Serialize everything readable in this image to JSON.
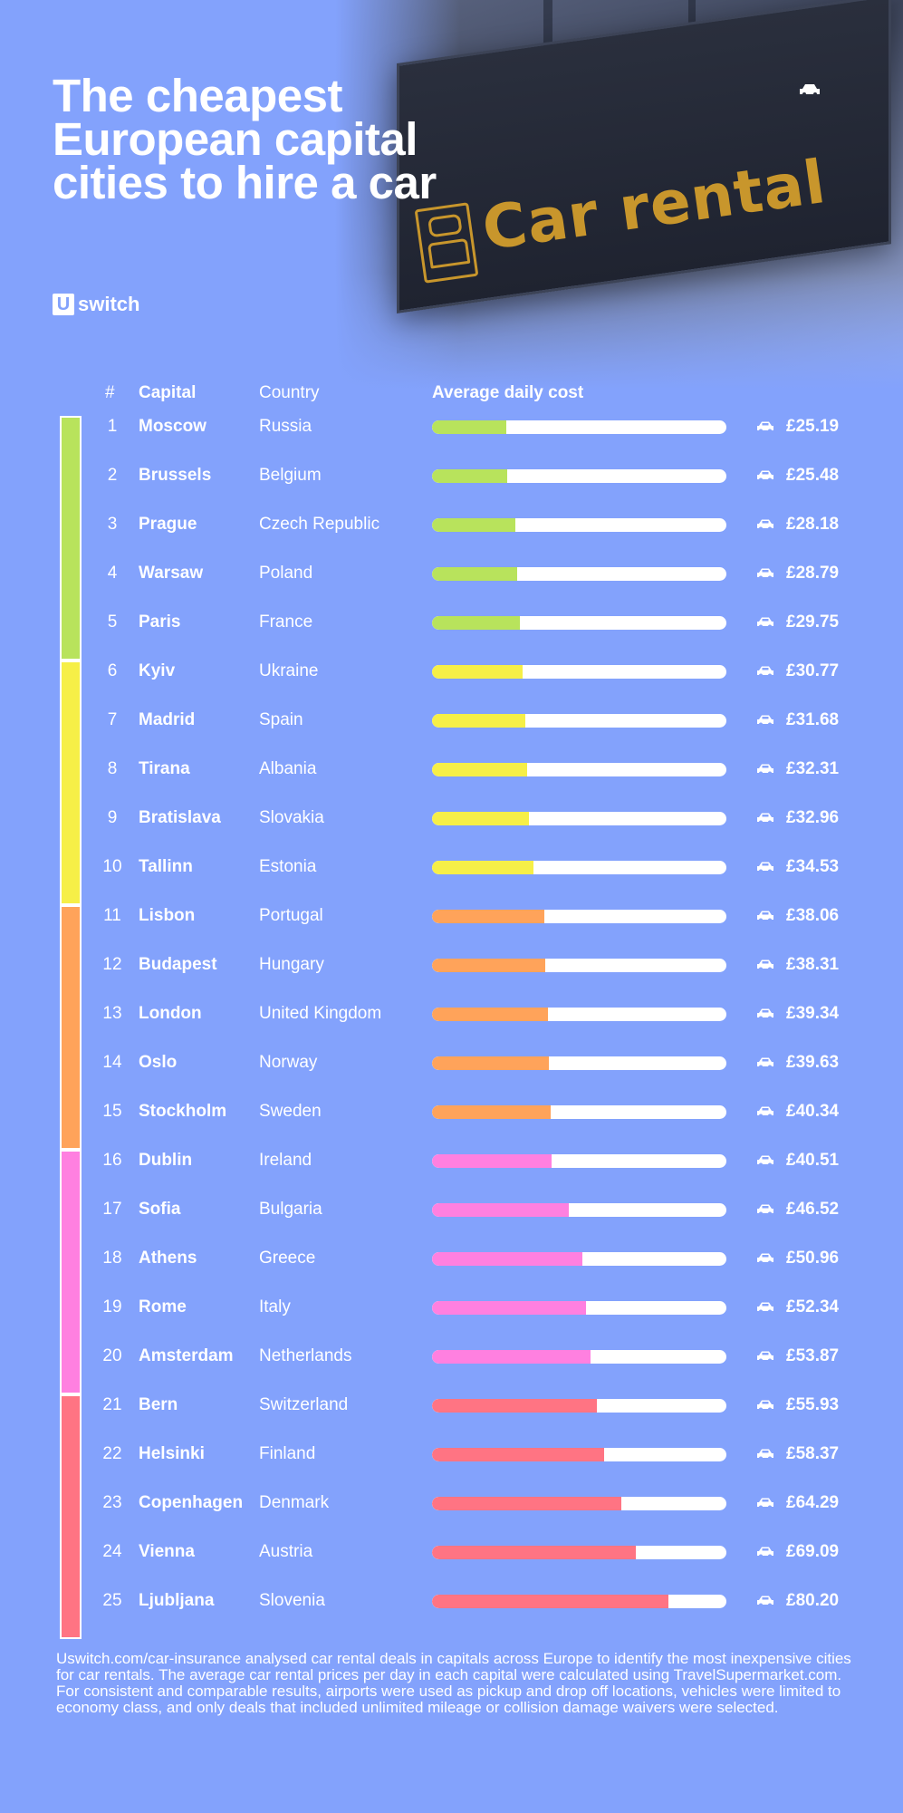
{
  "title": "The cheapest European capital cities to hire a car",
  "brand": {
    "mark": "U",
    "name": "switch"
  },
  "sign_text": "Car rental",
  "headers": {
    "rank": "#",
    "capital": "Capital",
    "country": "Country",
    "cost": "Average daily cost"
  },
  "chart_data": {
    "type": "bar",
    "title": "The cheapest European capital cities to hire a car",
    "xlabel": "",
    "ylabel": "Average daily cost",
    "xlim": [
      0,
      100
    ],
    "currency": "£",
    "categories": [
      "Moscow",
      "Brussels",
      "Prague",
      "Warsaw",
      "Paris",
      "Kyiv",
      "Madrid",
      "Tirana",
      "Bratislava",
      "Tallinn",
      "Lisbon",
      "Budapest",
      "London",
      "Oslo",
      "Stockholm",
      "Dublin",
      "Sofia",
      "Athens",
      "Rome",
      "Amsterdam",
      "Bern",
      "Helsinki",
      "Copenhagen",
      "Vienna",
      "Ljubljana"
    ],
    "values": [
      25.19,
      25.48,
      28.18,
      28.79,
      29.75,
      30.77,
      31.68,
      32.31,
      32.96,
      34.53,
      38.06,
      38.31,
      39.34,
      39.63,
      40.34,
      40.51,
      46.52,
      50.96,
      52.34,
      53.87,
      55.93,
      58.37,
      64.29,
      69.09,
      80.2
    ],
    "group_colors": [
      "#b8e35c",
      "#f6ef47",
      "#ffa35a",
      "#ff80e0",
      "#ff7483"
    ],
    "grid": false,
    "legend": "none"
  },
  "rows": [
    {
      "rank": "1",
      "capital": "Moscow",
      "country": "Russia",
      "cost": "£25.19",
      "group": 0
    },
    {
      "rank": "2",
      "capital": "Brussels",
      "country": "Belgium",
      "cost": "£25.48",
      "group": 0
    },
    {
      "rank": "3",
      "capital": "Prague",
      "country": "Czech Republic",
      "cost": "£28.18",
      "group": 0
    },
    {
      "rank": "4",
      "capital": "Warsaw",
      "country": "Poland",
      "cost": "£28.79",
      "group": 0
    },
    {
      "rank": "5",
      "capital": "Paris",
      "country": "France",
      "cost": "£29.75",
      "group": 0
    },
    {
      "rank": "6",
      "capital": "Kyiv",
      "country": "Ukraine",
      "cost": "£30.77",
      "group": 1
    },
    {
      "rank": "7",
      "capital": "Madrid",
      "country": "Spain",
      "cost": "£31.68",
      "group": 1
    },
    {
      "rank": "8",
      "capital": "Tirana",
      "country": "Albania",
      "cost": "£32.31",
      "group": 1
    },
    {
      "rank": "9",
      "capital": "Bratislava",
      "country": "Slovakia",
      "cost": "£32.96",
      "group": 1
    },
    {
      "rank": "10",
      "capital": "Tallinn",
      "country": "Estonia",
      "cost": "£34.53",
      "group": 1
    },
    {
      "rank": "11",
      "capital": "Lisbon",
      "country": "Portugal",
      "cost": "£38.06",
      "group": 2
    },
    {
      "rank": "12",
      "capital": "Budapest",
      "country": "Hungary",
      "cost": "£38.31",
      "group": 2
    },
    {
      "rank": "13",
      "capital": "London",
      "country": "United Kingdom",
      "cost": "£39.34",
      "group": 2
    },
    {
      "rank": "14",
      "capital": "Oslo",
      "country": "Norway",
      "cost": "£39.63",
      "group": 2
    },
    {
      "rank": "15",
      "capital": "Stockholm",
      "country": "Sweden",
      "cost": "£40.34",
      "group": 2
    },
    {
      "rank": "16",
      "capital": "Dublin",
      "country": "Ireland",
      "cost": "£40.51",
      "group": 3
    },
    {
      "rank": "17",
      "capital": "Sofia",
      "country": "Bulgaria",
      "cost": "£46.52",
      "group": 3
    },
    {
      "rank": "18",
      "capital": "Athens",
      "country": "Greece",
      "cost": "£50.96",
      "group": 3
    },
    {
      "rank": "19",
      "capital": "Rome",
      "country": "Italy",
      "cost": "£52.34",
      "group": 3
    },
    {
      "rank": "20",
      "capital": "Amsterdam",
      "country": "Netherlands",
      "cost": "£53.87",
      "group": 3
    },
    {
      "rank": "21",
      "capital": "Bern",
      "country": "Switzerland",
      "cost": "£55.93",
      "group": 4
    },
    {
      "rank": "22",
      "capital": "Helsinki",
      "country": "Finland",
      "cost": "£58.37",
      "group": 4
    },
    {
      "rank": "23",
      "capital": "Copenhagen",
      "country": "Denmark",
      "cost": "£64.29",
      "group": 4
    },
    {
      "rank": "24",
      "capital": "Vienna",
      "country": "Austria",
      "cost": "£69.09",
      "group": 4
    },
    {
      "rank": "25",
      "capital": "Ljubljana",
      "country": "Slovenia",
      "cost": "£80.20",
      "group": 4
    }
  ],
  "footnote": "Uswitch.com/car-insurance analysed car rental deals in capitals across Europe to identify the most inexpensive cities for car rentals. The average car rental prices per day in each capital were calculated using TravelSupermarket.com. For consistent and comparable results, airports were used as pickup and drop off locations, vehicles were limited to economy class, and only deals that included unlimited mileage or collision damage waivers were selected."
}
